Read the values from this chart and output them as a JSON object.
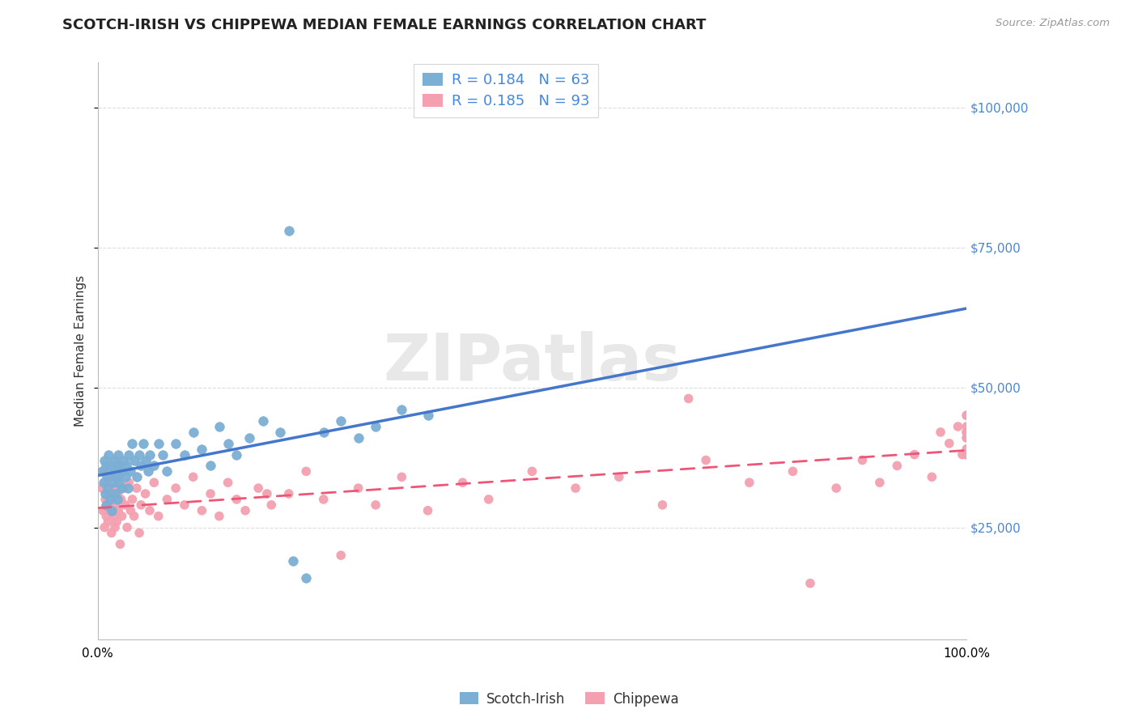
{
  "title": "SCOTCH-IRISH VS CHIPPEWA MEDIAN FEMALE EARNINGS CORRELATION CHART",
  "source_text": "Source: ZipAtlas.com",
  "ylabel": "Median Female Earnings",
  "x_min": 0.0,
  "x_max": 1.0,
  "y_min": 5000,
  "y_max": 108000,
  "yticks": [
    25000,
    50000,
    75000,
    100000
  ],
  "ytick_labels": [
    "$25,000",
    "$50,000",
    "$75,000",
    "$100,000"
  ],
  "xtick_labels": [
    "0.0%",
    "100.0%"
  ],
  "scotch_irish_color": "#7BAFD4",
  "chippewa_color": "#F4A0B0",
  "scotch_irish_R": 0.184,
  "scotch_irish_N": 63,
  "chippewa_R": 0.185,
  "chippewa_N": 93,
  "grid_color": "#DDDDDD",
  "background_color": "#FFFFFF",
  "watermark_text": "ZIPatlas",
  "title_fontsize": 13,
  "axis_label_fontsize": 11,
  "tick_label_fontsize": 11,
  "legend_fontsize": 13,
  "scotch_irish_x": [
    0.005,
    0.007,
    0.008,
    0.009,
    0.01,
    0.01,
    0.011,
    0.012,
    0.013,
    0.014,
    0.015,
    0.016,
    0.017,
    0.018,
    0.019,
    0.02,
    0.021,
    0.022,
    0.023,
    0.024,
    0.025,
    0.026,
    0.027,
    0.028,
    0.03,
    0.032,
    0.033,
    0.035,
    0.036,
    0.038,
    0.04,
    0.042,
    0.045,
    0.048,
    0.05,
    0.053,
    0.055,
    0.058,
    0.06,
    0.065,
    0.07,
    0.075,
    0.08,
    0.09,
    0.1,
    0.11,
    0.12,
    0.13,
    0.14,
    0.15,
    0.16,
    0.175,
    0.19,
    0.21,
    0.225,
    0.24,
    0.26,
    0.28,
    0.3,
    0.32,
    0.35,
    0.38,
    0.22
  ],
  "scotch_irish_y": [
    35000,
    33000,
    37000,
    31000,
    36000,
    29000,
    34000,
    32000,
    38000,
    30000,
    36000,
    28000,
    35000,
    33000,
    37000,
    31000,
    36000,
    34000,
    30000,
    38000,
    33000,
    36000,
    32000,
    35000,
    37000,
    34000,
    36000,
    32000,
    38000,
    35000,
    40000,
    37000,
    34000,
    38000,
    36000,
    40000,
    37000,
    35000,
    38000,
    36000,
    40000,
    38000,
    35000,
    40000,
    38000,
    42000,
    39000,
    36000,
    43000,
    40000,
    38000,
    41000,
    44000,
    42000,
    19000,
    16000,
    42000,
    44000,
    41000,
    43000,
    46000,
    45000,
    78000
  ],
  "chippewa_x": [
    0.005,
    0.006,
    0.007,
    0.008,
    0.009,
    0.01,
    0.01,
    0.011,
    0.012,
    0.013,
    0.014,
    0.015,
    0.016,
    0.017,
    0.018,
    0.019,
    0.02,
    0.021,
    0.022,
    0.023,
    0.024,
    0.025,
    0.026,
    0.027,
    0.028,
    0.03,
    0.032,
    0.034,
    0.036,
    0.038,
    0.04,
    0.042,
    0.045,
    0.048,
    0.05,
    0.055,
    0.06,
    0.065,
    0.07,
    0.08,
    0.09,
    0.1,
    0.11,
    0.12,
    0.13,
    0.14,
    0.15,
    0.16,
    0.17,
    0.185,
    0.2,
    0.22,
    0.24,
    0.26,
    0.28,
    0.3,
    0.32,
    0.35,
    0.38,
    0.42,
    0.45,
    0.5,
    0.55,
    0.6,
    0.65,
    0.7,
    0.75,
    0.8,
    0.85,
    0.88,
    0.9,
    0.92,
    0.94,
    0.96,
    0.97,
    0.98,
    0.99,
    0.995,
    1.0,
    1.0,
    1.0,
    1.0,
    1.0,
    1.0,
    1.0,
    1.0,
    1.0,
    1.0,
    1.0,
    1.0,
    0.195,
    0.82,
    0.68
  ],
  "chippewa_y": [
    32000,
    28000,
    35000,
    25000,
    30000,
    27000,
    33000,
    29000,
    26000,
    31000,
    28000,
    34000,
    24000,
    30000,
    27000,
    32000,
    25000,
    29000,
    26000,
    31000,
    28000,
    34000,
    22000,
    30000,
    27000,
    32000,
    29000,
    25000,
    33000,
    28000,
    30000,
    27000,
    32000,
    24000,
    29000,
    31000,
    28000,
    33000,
    27000,
    30000,
    32000,
    29000,
    34000,
    28000,
    31000,
    27000,
    33000,
    30000,
    28000,
    32000,
    29000,
    31000,
    35000,
    30000,
    20000,
    32000,
    29000,
    34000,
    28000,
    33000,
    30000,
    35000,
    32000,
    34000,
    29000,
    37000,
    33000,
    35000,
    32000,
    37000,
    33000,
    36000,
    38000,
    34000,
    42000,
    40000,
    43000,
    38000,
    42000,
    38000,
    41000,
    45000,
    39000,
    42000,
    38000,
    41000,
    43000,
    38000,
    42000,
    45000,
    31000,
    15000,
    48000
  ]
}
